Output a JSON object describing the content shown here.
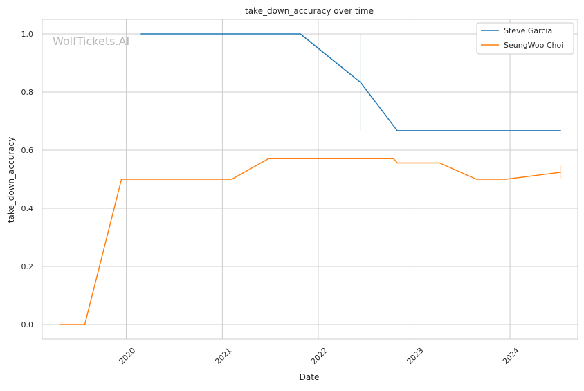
{
  "chart_data": {
    "type": "line",
    "title": "take_down_accuracy over time",
    "xlabel": "Date",
    "ylabel": "take_down_accuracy",
    "watermark": "WolfTickets.AI",
    "x_ticks": [
      "2020",
      "2021",
      "2022",
      "2023",
      "2024"
    ],
    "y_ticks": [
      "0.0",
      "0.2",
      "0.4",
      "0.6",
      "0.8",
      "1.0"
    ],
    "xlim": [
      "2019-02-15",
      "2024-09-15"
    ],
    "ylim": [
      -0.05,
      1.05
    ],
    "grid": true,
    "legend_position": "top-right",
    "series": [
      {
        "name": "Steve Garcia",
        "color": "#1f77b4",
        "points": [
          {
            "x": "2020-02-25",
            "y": 1.0
          },
          {
            "x": "2021-10-25",
            "y": 1.0
          },
          {
            "x": "2022-06-11",
            "y": 0.833
          },
          {
            "x": "2022-10-29",
            "y": 0.667
          },
          {
            "x": "2024-07-13",
            "y": 0.667
          }
        ]
      },
      {
        "name": "SeungWoo Choi",
        "color": "#ff7f0e",
        "points": [
          {
            "x": "2019-04-20",
            "y": 0.0
          },
          {
            "x": "2019-07-27",
            "y": 0.0
          },
          {
            "x": "2019-12-14",
            "y": 0.5
          },
          {
            "x": "2021-02-06",
            "y": 0.5
          },
          {
            "x": "2021-06-26",
            "y": 0.571
          },
          {
            "x": "2022-10-15",
            "y": 0.571
          },
          {
            "x": "2022-10-29",
            "y": 0.556
          },
          {
            "x": "2023-04-08",
            "y": 0.556
          },
          {
            "x": "2023-08-26",
            "y": 0.5
          },
          {
            "x": "2023-12-16",
            "y": 0.5
          },
          {
            "x": "2024-07-13",
            "y": 0.524
          }
        ]
      }
    ]
  }
}
